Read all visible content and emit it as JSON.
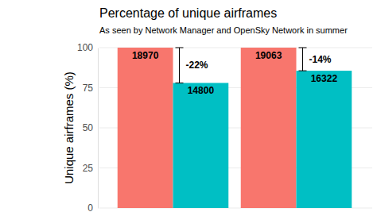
{
  "chart_data": {
    "type": "bar",
    "title": "Percentage of unique airframes",
    "subtitle": "As seen by Network Manager and OpenSky Network in summer",
    "y_label": "Unique airframes (%)",
    "categories": [
      null,
      null
    ],
    "series": [
      {
        "color": "#F8766D",
        "values": [
          100,
          100
        ],
        "counts": [
          18970,
          19063
        ]
      },
      {
        "color": "#00BFC4",
        "values": [
          78,
          85.6
        ],
        "counts": [
          14800,
          16322
        ]
      }
    ],
    "annotations": [
      "-22%",
      "-14%"
    ],
    "ylim": [
      0,
      100
    ],
    "yticks": [
      0,
      25,
      50,
      75,
      100
    ],
    "grid": true
  }
}
